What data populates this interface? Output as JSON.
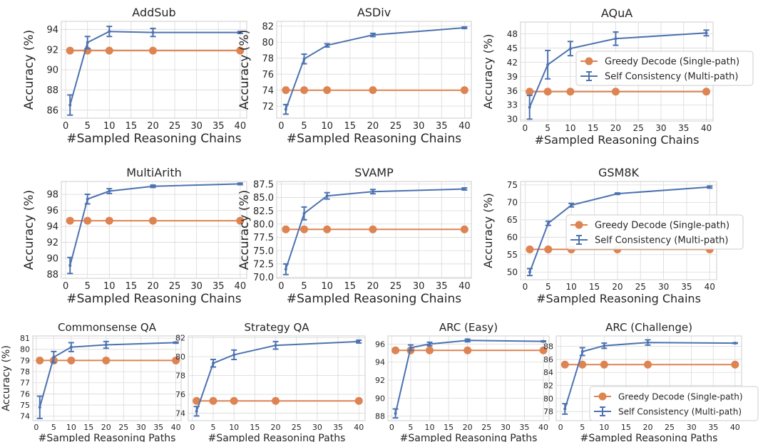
{
  "colors": {
    "greedy": "#dd8452",
    "sc": "#4c72b0",
    "grid": "#d9d9d9",
    "text": "#262626"
  },
  "chart_data": [
    {
      "type": "line",
      "title": "AddSub",
      "xlabel": "#Sampled Reasoning Chains",
      "ylabel": "Accuracy (%)",
      "xlim": [
        -1,
        41.5
      ],
      "ylim": [
        85.2,
        94.8
      ],
      "xticks": [
        0,
        5,
        10,
        15,
        20,
        25,
        30,
        35,
        40
      ],
      "yticks": [
        86,
        88,
        90,
        92,
        94
      ],
      "ytick_labels": [
        "86",
        "88",
        "90",
        "92",
        "94"
      ],
      "legend": null,
      "x": [
        1,
        5,
        10,
        20,
        40
      ],
      "series": [
        {
          "name": "",
          "key": "greedy",
          "values": [
            91.9,
            91.9,
            91.9,
            91.9,
            91.9
          ]
        },
        {
          "name": "",
          "key": "sc",
          "values": [
            86.5,
            92.7,
            93.8,
            93.7,
            93.7
          ],
          "err": [
            1.0,
            0.6,
            0.5,
            0.4,
            0.1
          ]
        }
      ]
    },
    {
      "type": "line",
      "title": "ASDiv",
      "xlabel": "#Sampled Reasoning Chains",
      "ylabel": "Accuracy (%)",
      "xlim": [
        -1,
        41.5
      ],
      "ylim": [
        70.5,
        82.6
      ],
      "xticks": [
        0,
        5,
        10,
        15,
        20,
        25,
        30,
        35,
        40
      ],
      "yticks": [
        72,
        74,
        76,
        78,
        80,
        82
      ],
      "ytick_labels": [
        "72",
        "74",
        "76",
        "78",
        "80",
        "82"
      ],
      "legend": null,
      "x": [
        1,
        5,
        10,
        20,
        40
      ],
      "series": [
        {
          "name": "",
          "key": "greedy",
          "values": [
            74.0,
            74.0,
            74.0,
            74.0,
            74.0
          ]
        },
        {
          "name": "",
          "key": "sc",
          "values": [
            71.6,
            77.9,
            79.6,
            80.9,
            81.8
          ],
          "err": [
            0.6,
            0.6,
            0.2,
            0.2,
            0.1
          ]
        }
      ]
    },
    {
      "type": "line",
      "title": "AQuA",
      "xlabel": "#Sampled Reasoning Chains",
      "ylabel": "Accuracy (%)",
      "xlim": [
        -1,
        41.5
      ],
      "ylim": [
        29.6,
        50.5
      ],
      "xticks": [
        0,
        5,
        10,
        15,
        20,
        25,
        30,
        35,
        40
      ],
      "yticks": [
        30,
        33,
        36,
        39,
        42,
        45,
        48
      ],
      "ytick_labels": [
        "30",
        "33",
        "36",
        "39",
        "42",
        "45",
        "48"
      ],
      "legend": {
        "position": "center-right",
        "greedy": "Greedy Decode (Single-path)",
        "sc": "Self Consistency (Multi-path)"
      },
      "x": [
        1,
        5,
        10,
        20,
        40
      ],
      "series": [
        {
          "name": "Greedy Decode (Single-path)",
          "key": "greedy",
          "values": [
            35.8,
            35.8,
            35.8,
            35.8,
            35.8
          ]
        },
        {
          "name": "Self Consistency (Multi-path)",
          "key": "sc",
          "values": [
            32.5,
            41.5,
            44.9,
            47.0,
            48.2
          ],
          "err": [
            2.5,
            3.0,
            1.5,
            1.4,
            0.6
          ]
        }
      ]
    },
    {
      "type": "line",
      "title": "MultiArith",
      "xlabel": "#Sampled Reasoning Chains",
      "ylabel": "Accuracy (%)",
      "xlim": [
        -1,
        41.5
      ],
      "ylim": [
        87.5,
        99.6
      ],
      "xticks": [
        0,
        5,
        10,
        15,
        20,
        25,
        30,
        35,
        40
      ],
      "yticks": [
        88,
        90,
        92,
        94,
        96,
        98
      ],
      "ytick_labels": [
        "88",
        "90",
        "92",
        "94",
        "96",
        "98"
      ],
      "legend": null,
      "x": [
        1,
        5,
        10,
        20,
        40
      ],
      "series": [
        {
          "name": "",
          "key": "greedy",
          "values": [
            94.7,
            94.7,
            94.7,
            94.7,
            94.7
          ]
        },
        {
          "name": "",
          "key": "sc",
          "values": [
            89.1,
            97.4,
            98.4,
            99.0,
            99.3
          ],
          "err": [
            1.0,
            0.6,
            0.3,
            0.15,
            0.1
          ]
        }
      ]
    },
    {
      "type": "line",
      "title": "SVAMP",
      "xlabel": "#Sampled Reasoning Chains",
      "ylabel": "Accuracy (%)",
      "xlim": [
        -1,
        41.5
      ],
      "ylim": [
        69.8,
        88.0
      ],
      "xticks": [
        0,
        5,
        10,
        15,
        20,
        25,
        30,
        35,
        40
      ],
      "yticks": [
        70.0,
        72.5,
        75.0,
        77.5,
        80.0,
        82.5,
        85.0,
        87.5
      ],
      "ytick_labels": [
        "70.0",
        "72.5",
        "75.0",
        "77.5",
        "80.0",
        "82.5",
        "85.0",
        "87.5"
      ],
      "legend": null,
      "x": [
        1,
        5,
        10,
        20,
        40
      ],
      "series": [
        {
          "name": "",
          "key": "greedy",
          "values": [
            79.0,
            79.0,
            79.0,
            79.0,
            79.0
          ]
        },
        {
          "name": "",
          "key": "sc",
          "values": [
            71.5,
            82.0,
            85.3,
            86.1,
            86.6
          ],
          "err": [
            1.0,
            1.2,
            0.6,
            0.4,
            0.2
          ]
        }
      ]
    },
    {
      "type": "line",
      "title": "GSM8K",
      "xlabel": "#Sampled Reasoning Chains",
      "ylabel": "Accuracy (%)",
      "xlim": [
        -1,
        41.5
      ],
      "ylim": [
        47.8,
        76.0
      ],
      "xticks": [
        0,
        5,
        10,
        15,
        20,
        25,
        30,
        35,
        40
      ],
      "yticks": [
        50,
        55,
        60,
        65,
        70,
        75
      ],
      "ytick_labels": [
        "50",
        "55",
        "60",
        "65",
        "70",
        "75"
      ],
      "legend": {
        "position": "center-right",
        "greedy": "Greedy Decode (Single-path)",
        "sc": "Self Consistency (Multi-path)"
      },
      "x": [
        1,
        5,
        10,
        20,
        40
      ],
      "series": [
        {
          "name": "Greedy Decode (Single-path)",
          "key": "greedy",
          "values": [
            56.5,
            56.5,
            56.5,
            56.5,
            56.5
          ]
        },
        {
          "name": "Self Consistency (Multi-path)",
          "key": "sc",
          "values": [
            50.0,
            64.0,
            69.2,
            72.5,
            74.4
          ],
          "err": [
            1.0,
            0.6,
            0.5,
            0.2,
            0.3
          ]
        }
      ]
    },
    {
      "type": "line",
      "title": "Commonsense QA",
      "xlabel": "#Sampled Reasoning Paths",
      "ylabel": "Accuracy (%)",
      "xlim": [
        -1,
        41.5
      ],
      "ylim": [
        73.6,
        81.2
      ],
      "xticks": [
        0,
        5,
        10,
        15,
        20,
        25,
        30,
        35,
        40
      ],
      "yticks": [
        74,
        75,
        76,
        77,
        78,
        79,
        80,
        81
      ],
      "ytick_labels": [
        "74",
        "75",
        "76",
        "77",
        "78",
        "79",
        "80",
        "81"
      ],
      "legend": null,
      "x": [
        1,
        5,
        10,
        20,
        40
      ],
      "series": [
        {
          "name": "",
          "key": "greedy",
          "values": [
            79.0,
            79.0,
            79.0,
            79.0,
            79.0
          ]
        },
        {
          "name": "",
          "key": "sc",
          "values": [
            74.8,
            79.3,
            80.2,
            80.4,
            80.6
          ],
          "err": [
            1.0,
            0.5,
            0.4,
            0.3,
            0.05
          ]
        }
      ]
    },
    {
      "type": "line",
      "title": "Strategy QA",
      "xlabel": "#Sampled Reasoning Paths",
      "ylabel": "",
      "xlim": [
        -1,
        41.5
      ],
      "ylim": [
        73.2,
        82.2
      ],
      "xticks": [
        0,
        5,
        10,
        15,
        20,
        25,
        30,
        35,
        40
      ],
      "yticks": [
        74,
        76,
        78,
        80,
        82
      ],
      "ytick_labels": [
        "74",
        "76",
        "78",
        "80",
        "82"
      ],
      "legend": null,
      "x": [
        1,
        5,
        10,
        20,
        40
      ],
      "series": [
        {
          "name": "",
          "key": "greedy",
          "values": [
            75.3,
            75.3,
            75.3,
            75.3,
            75.3
          ]
        },
        {
          "name": "",
          "key": "sc",
          "values": [
            74.2,
            79.3,
            80.2,
            81.2,
            81.6
          ],
          "err": [
            0.5,
            0.4,
            0.5,
            0.4,
            0.15
          ]
        }
      ]
    },
    {
      "type": "line",
      "title": "ARC (Easy)",
      "xlabel": "#Sampled Reasoning Paths",
      "ylabel": "",
      "xlim": [
        -1,
        41.5
      ],
      "ylim": [
        87.5,
        96.9
      ],
      "xticks": [
        0,
        5,
        10,
        15,
        20,
        25,
        30,
        35,
        40
      ],
      "yticks": [
        88,
        90,
        92,
        94,
        96
      ],
      "ytick_labels": [
        "88",
        "90",
        "92",
        "94",
        "96"
      ],
      "legend": null,
      "x": [
        1,
        5,
        10,
        20,
        40
      ],
      "series": [
        {
          "name": "",
          "key": "greedy",
          "values": [
            95.3,
            95.3,
            95.3,
            95.3,
            95.3
          ]
        },
        {
          "name": "",
          "key": "sc",
          "values": [
            88.3,
            95.6,
            96.0,
            96.4,
            96.3
          ],
          "err": [
            0.5,
            0.3,
            0.2,
            0.15,
            0.05
          ]
        }
      ]
    },
    {
      "type": "line",
      "title": "ARC (Challenge)",
      "xlabel": "#Sampled Reasoning Paths",
      "ylabel": "",
      "xlim": [
        -1,
        41.5
      ],
      "ylim": [
        76.6,
        89.6
      ],
      "xticks": [
        0,
        5,
        10,
        15,
        20,
        25,
        30,
        35,
        40
      ],
      "yticks": [
        78,
        80,
        82,
        84,
        86,
        88
      ],
      "ytick_labels": [
        "78",
        "80",
        "82",
        "84",
        "86",
        "88"
      ],
      "legend": {
        "position": "bottom-right",
        "greedy": "Greedy Decode (Single-path)",
        "sc": "Self Consistency (Multi-path)"
      },
      "x": [
        1,
        5,
        10,
        20,
        40
      ],
      "series": [
        {
          "name": "Greedy Decode (Single-path)",
          "key": "greedy",
          "values": [
            85.2,
            85.2,
            85.2,
            85.2,
            85.2
          ]
        },
        {
          "name": "Self Consistency (Multi-path)",
          "key": "sc",
          "values": [
            78.4,
            87.2,
            88.1,
            88.6,
            88.5
          ],
          "err": [
            0.8,
            0.6,
            0.4,
            0.4,
            0.05
          ]
        }
      ]
    }
  ]
}
